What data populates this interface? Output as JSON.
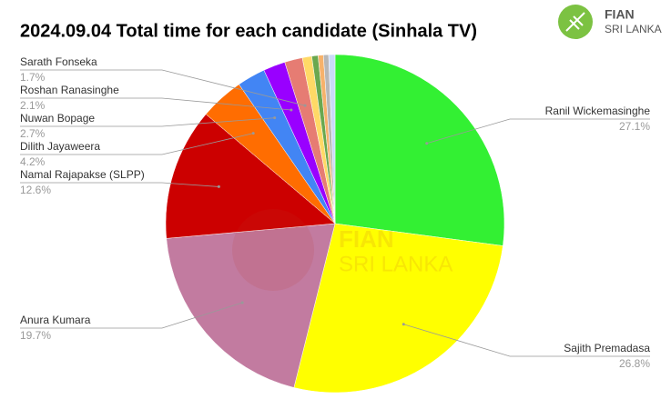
{
  "chart_data": {
    "type": "pie",
    "title": "2024.09.04 Total time for each candidate (Sinhala TV)",
    "categories": [
      "Ranil Wickemasinghe",
      "Sajith Premadasa",
      "Anura Kumara",
      "Namal Rajapakse (SLPP)",
      "Dilith Jayaweera",
      "Nuwan Bopage",
      "Roshan Ranasinghe",
      "Sarath Fonseka",
      null,
      null,
      null,
      null,
      null
    ],
    "values": [
      27.1,
      26.8,
      19.7,
      12.6,
      4.2,
      2.7,
      2.1,
      1.7,
      0.9,
      0.6,
      0.5,
      0.5,
      0.6
    ],
    "value_labels": [
      "27.1%",
      "26.8%",
      "19.7%",
      "12.6%",
      "4.2%",
      "2.7%",
      "2.1%",
      "1.7%",
      null,
      null,
      null,
      null,
      null
    ],
    "colors": [
      "#33f033",
      "#ffff00",
      "#c27ba0",
      "#cc0000",
      "#ff6d01",
      "#4285f4",
      "#9900ff",
      "#e67c73",
      "#ffd966",
      "#6aa84f",
      "#f6b26b",
      "#b7b7b7",
      "#c9daf8"
    ],
    "logo": {
      "name": "FIAN",
      "subtitle": "SRI LANKA"
    }
  }
}
